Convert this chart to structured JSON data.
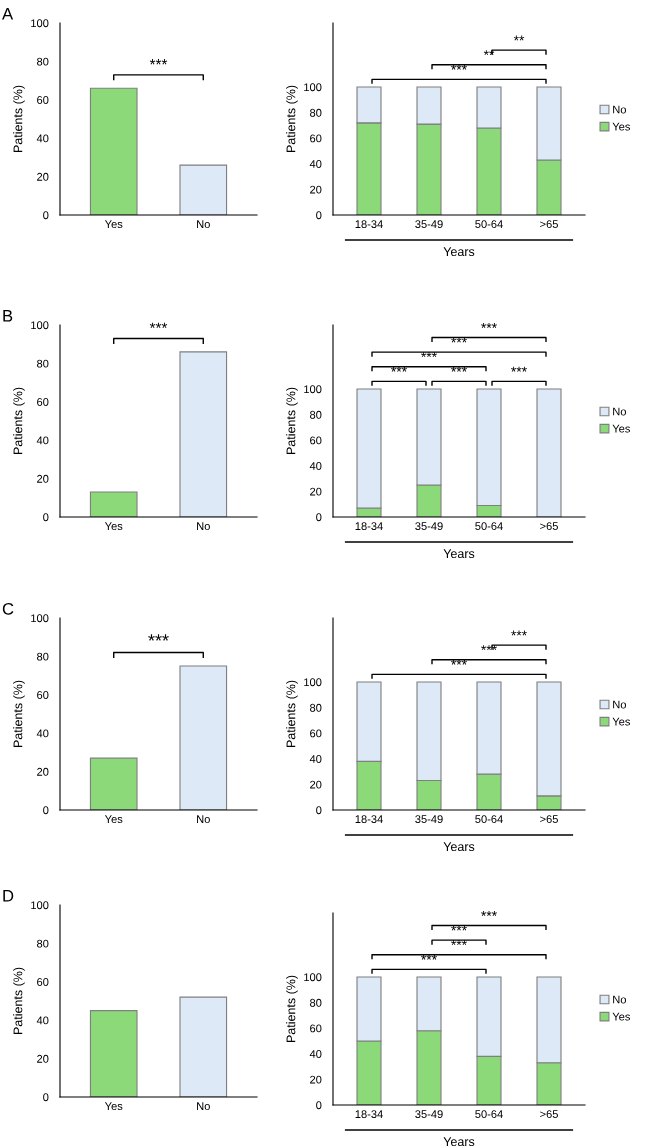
{
  "chart_data": [
    {
      "type": "bar",
      "title": "A",
      "categories": [
        "Yes",
        "No"
      ],
      "values": [
        66,
        26
      ],
      "colors": [
        "#8cd97a",
        "#dde9f6"
      ],
      "ylabel": "Patients (%)",
      "ylim": [
        0,
        100
      ],
      "yticks": [
        0,
        20,
        40,
        60,
        80,
        100
      ],
      "annotations": [
        "***"
      ]
    },
    {
      "type": "bar",
      "stacked": true,
      "categories": [
        "18-34",
        "35-49",
        "50-64",
        ">65"
      ],
      "xlabel": "Years",
      "ylabel": "Patients (%)",
      "ylim": [
        0,
        150
      ],
      "yticks": [
        0,
        20,
        40,
        60,
        80,
        100
      ],
      "legend": "right",
      "series": [
        {
          "name": "Yes",
          "color": "#8cd97a",
          "values": [
            72,
            71,
            68,
            43
          ]
        },
        {
          "name": "No",
          "color": "#dde9f6",
          "values": [
            28,
            29,
            32,
            57
          ]
        }
      ],
      "annotations": [
        "***",
        "**",
        "**"
      ]
    },
    {
      "type": "bar",
      "title": "B",
      "categories": [
        "Yes",
        "No"
      ],
      "values": [
        13,
        86
      ],
      "colors": [
        "#8cd97a",
        "#dde9f6"
      ],
      "ylabel": "Patients (%)",
      "ylim": [
        0,
        100
      ],
      "yticks": [
        0,
        20,
        40,
        60,
        80,
        100
      ],
      "annotations": [
        "***"
      ]
    },
    {
      "type": "bar",
      "stacked": true,
      "categories": [
        "18-34",
        "35-49",
        "50-64",
        ">65"
      ],
      "xlabel": "Years",
      "ylabel": "Patients (%)",
      "ylim": [
        0,
        150
      ],
      "yticks": [
        0,
        20,
        40,
        60,
        80,
        100
      ],
      "legend": "right",
      "series": [
        {
          "name": "Yes",
          "color": "#8cd97a",
          "values": [
            7,
            25,
            9,
            0
          ]
        },
        {
          "name": "No",
          "color": "#dde9f6",
          "values": [
            93,
            75,
            91,
            100
          ]
        }
      ],
      "annotations": [
        "***",
        "***",
        "***",
        "***",
        "***",
        "***"
      ]
    },
    {
      "type": "bar",
      "title": "C",
      "categories": [
        "Yes",
        "No"
      ],
      "values": [
        27,
        75
      ],
      "colors": [
        "#8cd97a",
        "#dde9f6"
      ],
      "ylabel": "Patients (%)",
      "ylim": [
        0,
        100
      ],
      "yticks": [
        0,
        20,
        40,
        60,
        80,
        100
      ],
      "annotations": [
        "***"
      ]
    },
    {
      "type": "bar",
      "stacked": true,
      "categories": [
        "18-34",
        "35-49",
        "50-64",
        ">65"
      ],
      "xlabel": "Years",
      "ylabel": "Patients (%)",
      "ylim": [
        0,
        150
      ],
      "yticks": [
        0,
        20,
        40,
        60,
        80,
        100
      ],
      "legend": "right",
      "series": [
        {
          "name": "Yes",
          "color": "#8cd97a",
          "values": [
            38,
            23,
            28,
            11
          ]
        },
        {
          "name": "No",
          "color": "#dde9f6",
          "values": [
            62,
            77,
            72,
            89
          ]
        }
      ],
      "annotations": [
        "***",
        "***",
        "***"
      ]
    },
    {
      "type": "bar",
      "title": "D",
      "categories": [
        "Yes",
        "No"
      ],
      "values": [
        45,
        52
      ],
      "colors": [
        "#8cd97a",
        "#dde9f6"
      ],
      "ylabel": "Patients (%)",
      "ylim": [
        0,
        100
      ],
      "yticks": [
        0,
        20,
        40,
        60,
        80,
        100
      ]
    },
    {
      "type": "bar",
      "stacked": true,
      "categories": [
        "18-34",
        "35-49",
        "50-64",
        ">65"
      ],
      "xlabel": "Years",
      "ylabel": "Patients (%)",
      "ylim": [
        0,
        150
      ],
      "yticks": [
        0,
        20,
        40,
        60,
        80,
        100
      ],
      "legend": "right",
      "series": [
        {
          "name": "Yes",
          "color": "#8cd97a",
          "values": [
            50,
            58,
            38,
            33
          ]
        },
        {
          "name": "No",
          "color": "#dde9f6",
          "values": [
            50,
            42,
            62,
            67
          ]
        }
      ],
      "annotations": [
        "***",
        "***",
        "***",
        "***"
      ]
    }
  ]
}
